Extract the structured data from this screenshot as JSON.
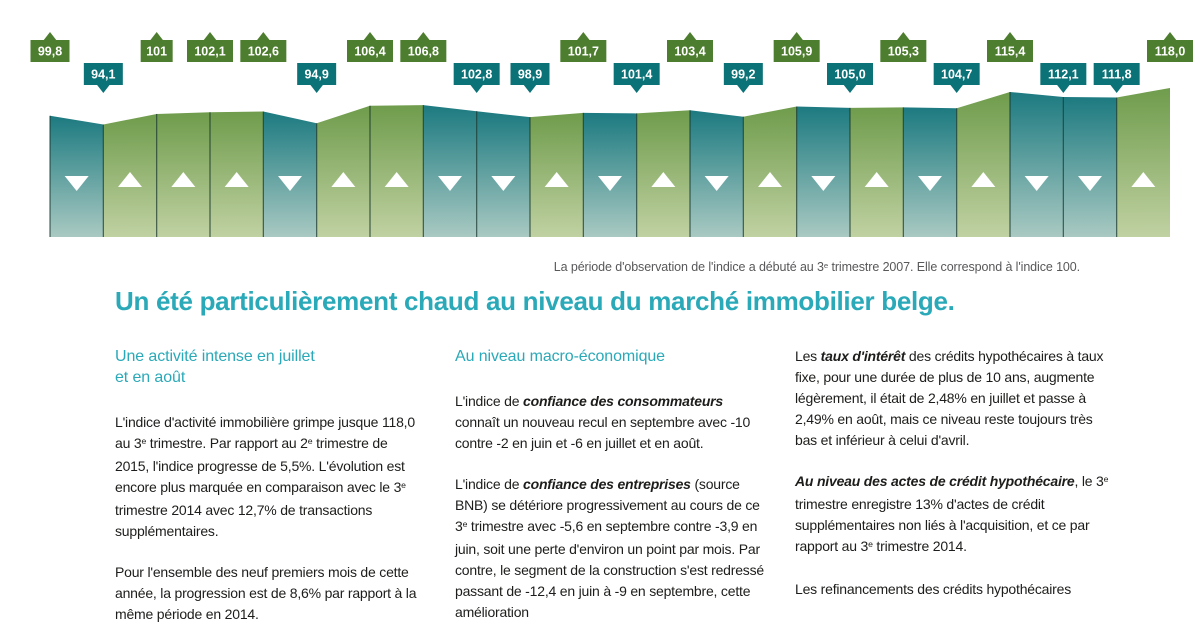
{
  "title": "Un été particulièrement chaud au niveau du marché immobilier belge.",
  "caption": {
    "segments": [
      {
        "text": "La période d'observation de l'indice a débuté au 3"
      },
      {
        "text": "e",
        "sup": true
      },
      {
        "text": " trimestre 2007. Elle correspond à l'indice 100."
      }
    ]
  },
  "chart_data": {
    "type": "area",
    "values": [
      99.8,
      94.1,
      101,
      102.1,
      102.6,
      94.9,
      106.4,
      106.8,
      102.8,
      98.9,
      101.7,
      101.4,
      103.4,
      99.2,
      105.9,
      105.0,
      105.3,
      104.7,
      115.4,
      112.1,
      111.8,
      118.0
    ],
    "value_labels": [
      "99,8",
      "94,1",
      "101",
      "102,1",
      "102,6",
      "94,9",
      "106,4",
      "106,8",
      "102,8",
      "98,9",
      "101,7",
      "101,4",
      "103,4",
      "99,2",
      "105,9",
      "105,0",
      "105,3",
      "104,7",
      "115,4",
      "112,1",
      "111,8",
      "118,0"
    ],
    "segment_directions": [
      "down",
      "up",
      "up",
      "up",
      "down",
      "up",
      "up",
      "down",
      "down",
      "up",
      "down",
      "up",
      "down",
      "up",
      "down",
      "up",
      "down",
      "up",
      "down",
      "down",
      "up"
    ],
    "base_index": 100,
    "ylim": [
      94.1,
      118.0
    ],
    "legend": "none",
    "axes": "none",
    "colors": {
      "up_badge": "#4d7d2e",
      "down_badge": "#0b7277",
      "up_bar_top": "#6f9c4c",
      "up_bar_bottom": "#c0d1a2",
      "down_bar_top": "#1c7a80",
      "down_bar_bottom": "#a9c9c2",
      "separator": "#16352c",
      "arrow": "#ffffff"
    }
  },
  "columns": [
    {
      "heading": "Une activité intense en juillet\net en août",
      "paragraphs": [
        [
          {
            "text": "L'indice d'activité immobilière grimpe jusque 118,0 au 3"
          },
          {
            "text": "e",
            "sup": true
          },
          {
            "text": " trimestre. Par rapport au 2"
          },
          {
            "text": "e",
            "sup": true
          },
          {
            "text": " trimestre de 2015, l'indice progresse de 5,5%. L'évolution est encore plus marquée en comparaison avec le 3"
          },
          {
            "text": "e",
            "sup": true
          },
          {
            "text": " trimestre 2014 avec 12,7% de transactions supplémentaires."
          }
        ],
        [
          {
            "text": "Pour l'ensemble des neuf premiers mois de cette année, la progression est de 8,6% par rapport à la même période en 2014."
          }
        ]
      ]
    },
    {
      "heading": "Au niveau macro-économique",
      "paragraphs": [
        [
          {
            "text": "L'indice de "
          },
          {
            "text": "confiance des consommateurs",
            "bold": true
          },
          {
            "text": " connaît un nouveau recul en septembre avec -10 contre -2 en juin et -6 en juillet et en août."
          }
        ],
        [
          {
            "text": "L'indice de "
          },
          {
            "text": "confiance des entreprises",
            "bold": true
          },
          {
            "text": " (source BNB) se détériore progressivement au cours de ce 3"
          },
          {
            "text": "e",
            "sup": true
          },
          {
            "text": " trimestre avec -5,6 en septembre contre -3,9 en juin, soit une perte d'environ un point par mois. Par contre, le segment de la construction s'est redressé passant de -12,4 en juin à -9 en septembre, cette amélioration"
          }
        ]
      ]
    },
    {
      "heading": "",
      "paragraphs": [
        [
          {
            "text": "Les "
          },
          {
            "text": "taux d'intérêt",
            "bold": true
          },
          {
            "text": " des crédits hypothécaires à taux fixe, pour une durée de plus de 10 ans, augmente légèrement, il était de 2,48% en juillet et passe à 2,49% en août, mais ce niveau reste toujours très bas et inférieur à celui d'avril."
          }
        ],
        [
          {
            "text": "Au niveau des actes de crédit hypothécaire",
            "bold": true
          },
          {
            "text": ", le 3"
          },
          {
            "text": "e",
            "sup": true
          },
          {
            "text": " trimestre enregistre 13% d'actes de crédit supplémentaires non liés à l'acquisition, et ce par rapport au 3"
          },
          {
            "text": "e",
            "sup": true
          },
          {
            "text": " trimestre 2014."
          }
        ],
        [
          {
            "text": "Les refinancements des crédits hypothécaires"
          }
        ]
      ]
    }
  ]
}
